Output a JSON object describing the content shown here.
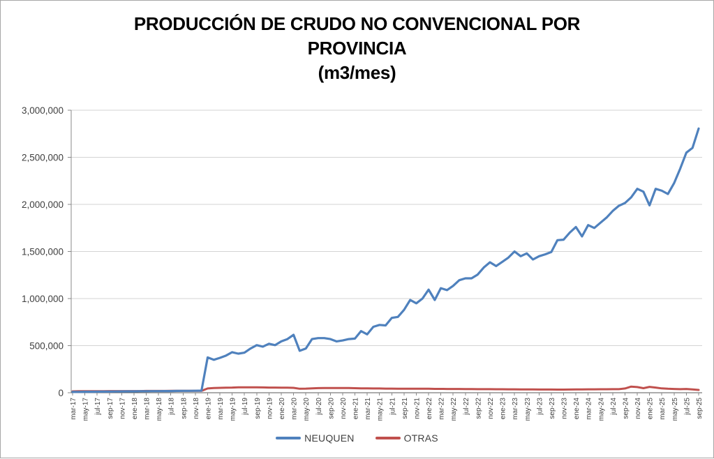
{
  "chart": {
    "title_lines": [
      "PRODUCCIÓN DE CRUDO NO CONVENCIONAL POR",
      "PROVINCIA",
      "(m3/mes)"
    ]
  },
  "chart_data": {
    "type": "line",
    "title": "PRODUCCIÓN DE CRUDO NO CONVENCIONAL POR PROVINCIA (m3/mes)",
    "xlabel": "",
    "ylabel": "",
    "ylim": [
      0,
      3000000
    ],
    "grid": true,
    "legend_position": "bottom-center",
    "x_is_monthly": true,
    "x_first_month": "mar-17",
    "x_last_month": "sep-25",
    "x_tick_every_n_months": 2,
    "x_tick_labels": [
      "mar-17",
      "may-17",
      "jul-17",
      "sep-17",
      "nov-17",
      "ene-18",
      "mar-18",
      "may-18",
      "jul-18",
      "sep-18",
      "nov-18",
      "ene-19",
      "mar-19",
      "may-19",
      "jul-19",
      "sep-19",
      "nov-19",
      "ene-20",
      "mar-20",
      "may-20",
      "jul-20",
      "sep-20",
      "nov-20",
      "ene-21",
      "mar-21",
      "may-21",
      "jul-21",
      "sep-21",
      "nov-21",
      "ene-22",
      "mar-22",
      "may-22",
      "jul-22",
      "sep-22",
      "nov-22",
      "ene-23",
      "mar-23",
      "may-23",
      "jul-23",
      "sep-23",
      "nov-23",
      "ene-24",
      "mar-24",
      "may-24",
      "jul-24",
      "sep-24",
      "nov-24",
      "ene-25",
      "mar-25",
      "may-25",
      "jul-25",
      "sep-25"
    ],
    "yticks": [
      {
        "value": 0,
        "label": "0"
      },
      {
        "value": 500000,
        "label": "500,000"
      },
      {
        "value": 1000000,
        "label": "1,000,000"
      },
      {
        "value": 1500000,
        "label": "1,500,000"
      },
      {
        "value": 2000000,
        "label": "2,000,000"
      },
      {
        "value": 2500000,
        "label": "2,500,000"
      },
      {
        "value": 3000000,
        "label": "3,000,000"
      }
    ],
    "series": [
      {
        "name": "NEUQUEN",
        "color": "#4F81BD",
        "values": [
          8000,
          9000,
          10000,
          10000,
          11000,
          12000,
          12000,
          13000,
          14000,
          15000,
          15000,
          16000,
          16000,
          17000,
          17000,
          18000,
          18000,
          19000,
          20000,
          20000,
          21000,
          22000,
          375000,
          350000,
          370000,
          395000,
          430000,
          415000,
          425000,
          470000,
          505000,
          490000,
          520000,
          505000,
          545000,
          570000,
          615000,
          445000,
          470000,
          570000,
          580000,
          580000,
          570000,
          545000,
          555000,
          570000,
          575000,
          655000,
          620000,
          700000,
          720000,
          715000,
          795000,
          805000,
          880000,
          985000,
          950000,
          1000000,
          1095000,
          985000,
          1110000,
          1090000,
          1135000,
          1195000,
          1215000,
          1215000,
          1255000,
          1330000,
          1385000,
          1345000,
          1390000,
          1435000,
          1500000,
          1450000,
          1480000,
          1415000,
          1450000,
          1470000,
          1495000,
          1620000,
          1625000,
          1700000,
          1760000,
          1660000,
          1780000,
          1750000,
          1805000,
          1860000,
          1930000,
          1985000,
          2015000,
          2075000,
          2165000,
          2135000,
          1990000,
          2165000,
          2145000,
          2110000,
          2225000,
          2380000,
          2550000,
          2600000,
          2805000
        ]
      },
      {
        "name": "OTRAS",
        "color": "#C0504D",
        "values": [
          15000,
          16000,
          16000,
          17000,
          17000,
          17000,
          18000,
          18000,
          18000,
          18000,
          18000,
          18000,
          19000,
          19000,
          19000,
          19000,
          20000,
          20000,
          20000,
          20000,
          20000,
          20000,
          45000,
          50000,
          52000,
          54000,
          55000,
          57000,
          58000,
          58000,
          57000,
          56000,
          55000,
          55000,
          54000,
          53000,
          52000,
          42000,
          44000,
          47000,
          49000,
          50000,
          50000,
          50000,
          50000,
          50000,
          48000,
          47000,
          46000,
          45000,
          45000,
          44000,
          44000,
          43000,
          43000,
          42000,
          42000,
          42000,
          42000,
          41000,
          41000,
          40000,
          40000,
          40000,
          39000,
          39000,
          38000,
          38000,
          38000,
          37000,
          37000,
          36000,
          36000,
          35000,
          35000,
          35000,
          34000,
          34000,
          34000,
          33000,
          33000,
          34000,
          35000,
          35000,
          36000,
          36000,
          37000,
          37000,
          38000,
          38000,
          45000,
          65000,
          60000,
          48000,
          62000,
          55000,
          46000,
          42000,
          40000,
          38000,
          40000,
          35000,
          30000
        ]
      }
    ]
  }
}
